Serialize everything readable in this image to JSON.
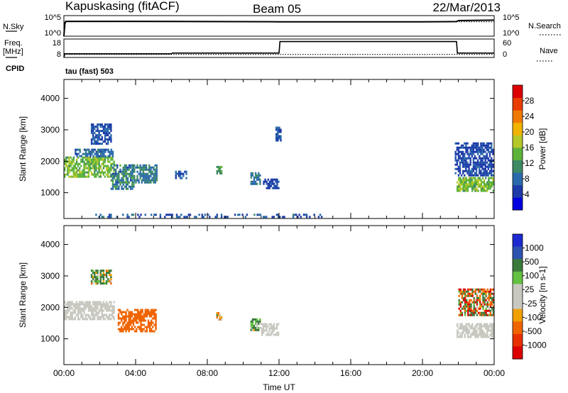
{
  "header": {
    "station": "Kapuskasing (fitACF)",
    "beam": "Beam 05",
    "date": "22/Mar/2013"
  },
  "params_panel": {
    "nsky_label": "N.Sky",
    "nsky_ticks": [
      "10^5",
      "10^0"
    ],
    "nsearch_label": "N.Search",
    "nsearch_ticks": [
      "10^5",
      "10^0"
    ],
    "freq_label_1": "Freq.",
    "freq_label_2": "[MHz]",
    "freq_ticks": [
      "18",
      "8"
    ],
    "nave_label": "Nave",
    "nave_ticks": [
      "60",
      "0"
    ],
    "cpid_label": "CPID",
    "cpid_value": "tau (fast) 503"
  },
  "colors": {
    "power": [
      "#0000e0",
      "#1c3aa8",
      "#2a6aaa",
      "#3d8a64",
      "#5cb33a",
      "#b4c828",
      "#f0b400",
      "#f07a00",
      "#e83c00",
      "#dc0000"
    ],
    "velocity": [
      "#1c2ad0",
      "#2c52b0",
      "#3a7a3a",
      "#64c040",
      "#c8c8c0",
      "#c8c8c0",
      "#f0a000",
      "#f06400",
      "#e83000",
      "#dc0000"
    ]
  },
  "chart_data": [
    {
      "type": "line",
      "name": "noise-search-panel",
      "series": [
        {
          "name": "N.Sky",
          "style": "solid",
          "x": [
            0,
            0.05,
            0.1,
            4,
            8,
            12,
            16,
            20,
            21.9,
            22.0,
            24
          ],
          "y": [
            0,
            3.2,
            3.6,
            3.6,
            3.55,
            3.5,
            3.5,
            3.5,
            3.55,
            3.8,
            3.9
          ]
        },
        {
          "name": "N.Search",
          "style": "dotted",
          "x": [
            0,
            0.1,
            24
          ],
          "y": [
            0,
            3.5,
            3.5
          ]
        }
      ],
      "ylim": [
        0,
        5
      ]
    },
    {
      "type": "line",
      "name": "freq-nave-panel",
      "series": [
        {
          "name": "Freq.",
          "style": "solid",
          "x": [
            0,
            0.05,
            6,
            6.05,
            12,
            12.05,
            21.9,
            21.95,
            24
          ],
          "y": [
            8,
            10,
            10,
            10.4,
            10.4,
            16.6,
            16.6,
            10.4,
            10.4
          ],
          "ylim": [
            8,
            18
          ]
        },
        {
          "name": "Nave",
          "style": "dotted",
          "x": [
            0,
            24
          ],
          "y": [
            10,
            10
          ],
          "ylim": [
            0,
            60
          ]
        }
      ]
    },
    {
      "type": "heatmap",
      "name": "power-panel",
      "xlabel": "",
      "ylabel": "Slant Range [km]",
      "xlim": [
        0,
        24
      ],
      "ylim": [
        180,
        4600
      ],
      "yticks": [
        1000,
        2000,
        3000,
        4000
      ],
      "colorbar": {
        "label": "Power [dB]",
        "ticks": [
          4,
          8,
          12,
          16,
          20,
          24,
          28
        ],
        "range": [
          0,
          32
        ]
      },
      "regions": [
        {
          "t": [
            0,
            2.8
          ],
          "r": [
            1500,
            2150
          ],
          "v": [
            12,
            18
          ]
        },
        {
          "t": [
            0.6,
            2.8
          ],
          "r": [
            2150,
            2400
          ],
          "v": [
            5,
            10
          ]
        },
        {
          "t": [
            1.5,
            2.7
          ],
          "r": [
            2500,
            3200
          ],
          "v": [
            4,
            8
          ]
        },
        {
          "t": [
            2.6,
            3.9
          ],
          "r": [
            1100,
            1900
          ],
          "v": [
            6,
            14
          ]
        },
        {
          "t": [
            3.8,
            5.2
          ],
          "r": [
            1300,
            1900
          ],
          "v": [
            7,
            12
          ]
        },
        {
          "t": [
            6.2,
            6.9
          ],
          "r": [
            1400,
            1700
          ],
          "v": [
            5,
            8
          ]
        },
        {
          "t": [
            8.5,
            8.8
          ],
          "r": [
            1550,
            1850
          ],
          "v": [
            10,
            14
          ]
        },
        {
          "t": [
            10.4,
            11.0
          ],
          "r": [
            1250,
            1650
          ],
          "v": [
            7,
            12
          ]
        },
        {
          "t": [
            11.1,
            12.0
          ],
          "r": [
            1100,
            1450
          ],
          "v": [
            4,
            7
          ]
        },
        {
          "t": [
            11.8,
            12.1
          ],
          "r": [
            2600,
            3100
          ],
          "v": [
            4,
            8
          ]
        },
        {
          "t": [
            21.9,
            24
          ],
          "r": [
            1000,
            1500
          ],
          "v": [
            12,
            18
          ]
        },
        {
          "t": [
            21.8,
            24
          ],
          "r": [
            1500,
            2600
          ],
          "v": [
            4,
            7
          ]
        },
        {
          "t": [
            1.5,
            14.5
          ],
          "r": [
            200,
            330
          ],
          "v": [
            4,
            10
          ]
        }
      ]
    },
    {
      "type": "heatmap",
      "name": "velocity-panel",
      "xlabel": "Time UT",
      "ylabel": "Slant Range [km]",
      "xlim": [
        0,
        24
      ],
      "ylim": [
        180,
        4600
      ],
      "xticks": [
        "00:00",
        "04:00",
        "08:00",
        "12:00",
        "16:00",
        "20:00",
        "00:00"
      ],
      "yticks": [
        1000,
        2000,
        3000,
        4000
      ],
      "colorbar": {
        "label": "Velocity [m s-1]",
        "ticks": [
          "1000",
          "500",
          "100",
          "25",
          "-25",
          "-100",
          "-500",
          "-1000"
        ]
      },
      "regions": [
        {
          "t": [
            0,
            2.8
          ],
          "r": [
            1600,
            2200
          ],
          "v": [
            0,
            5
          ]
        },
        {
          "t": [
            1.5,
            2.7
          ],
          "r": [
            2700,
            3200
          ],
          "v": [
            -200,
            500
          ]
        },
        {
          "t": [
            3.0,
            5.2
          ],
          "r": [
            1200,
            1950
          ],
          "v": [
            -400,
            -100
          ]
        },
        {
          "t": [
            8.5,
            8.8
          ],
          "r": [
            1550,
            1850
          ],
          "v": [
            -300,
            200
          ]
        },
        {
          "t": [
            10.4,
            11.0
          ],
          "r": [
            1250,
            1650
          ],
          "v": [
            -50,
            200
          ]
        },
        {
          "t": [
            11.0,
            12.0
          ],
          "r": [
            1100,
            1500
          ],
          "v": [
            0,
            10
          ]
        },
        {
          "t": [
            21.9,
            24
          ],
          "r": [
            1000,
            1500
          ],
          "v": [
            0,
            5
          ]
        },
        {
          "t": [
            22.0,
            24
          ],
          "r": [
            1700,
            2600
          ],
          "v": [
            -800,
            500
          ]
        }
      ]
    }
  ]
}
